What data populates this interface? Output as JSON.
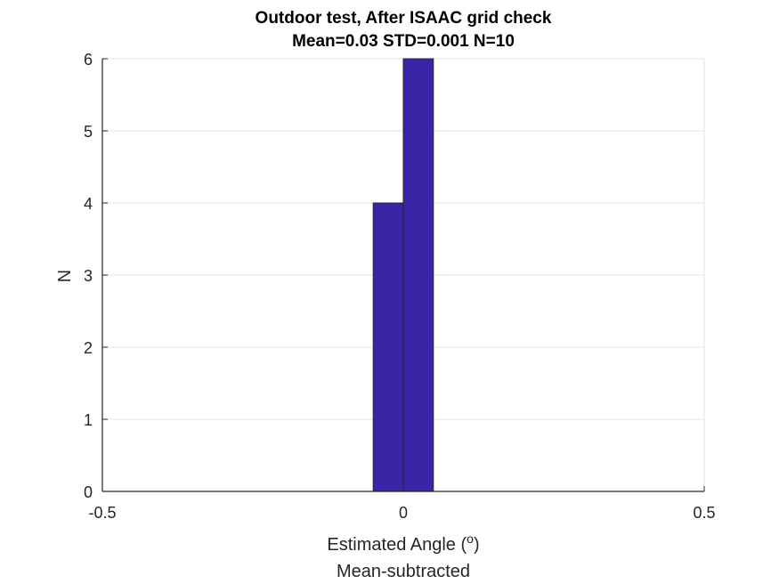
{
  "chart_data": {
    "type": "bar",
    "title": "Outdoor test, After ISAAC grid check",
    "subtitle": "Mean=0.03 STD=0.001 N=10",
    "xlabel_main": "Estimated Angle (",
    "xlabel_sup": "o",
    "xlabel_close": ")",
    "xlabel_line2": "Mean-subtracted",
    "ylabel": "N",
    "xlim": [
      -0.5,
      0.5
    ],
    "ylim": [
      0,
      6
    ],
    "xticks": [
      "-0.5",
      "0",
      "0.5"
    ],
    "yticks": [
      "0",
      "1",
      "2",
      "3",
      "4",
      "5",
      "6"
    ],
    "bins": [
      {
        "left": -0.05,
        "right": 0.0,
        "value": 4
      },
      {
        "left": 0.0,
        "right": 0.05,
        "value": 6
      }
    ],
    "bar_color": "#3b25a6",
    "grid": true
  }
}
